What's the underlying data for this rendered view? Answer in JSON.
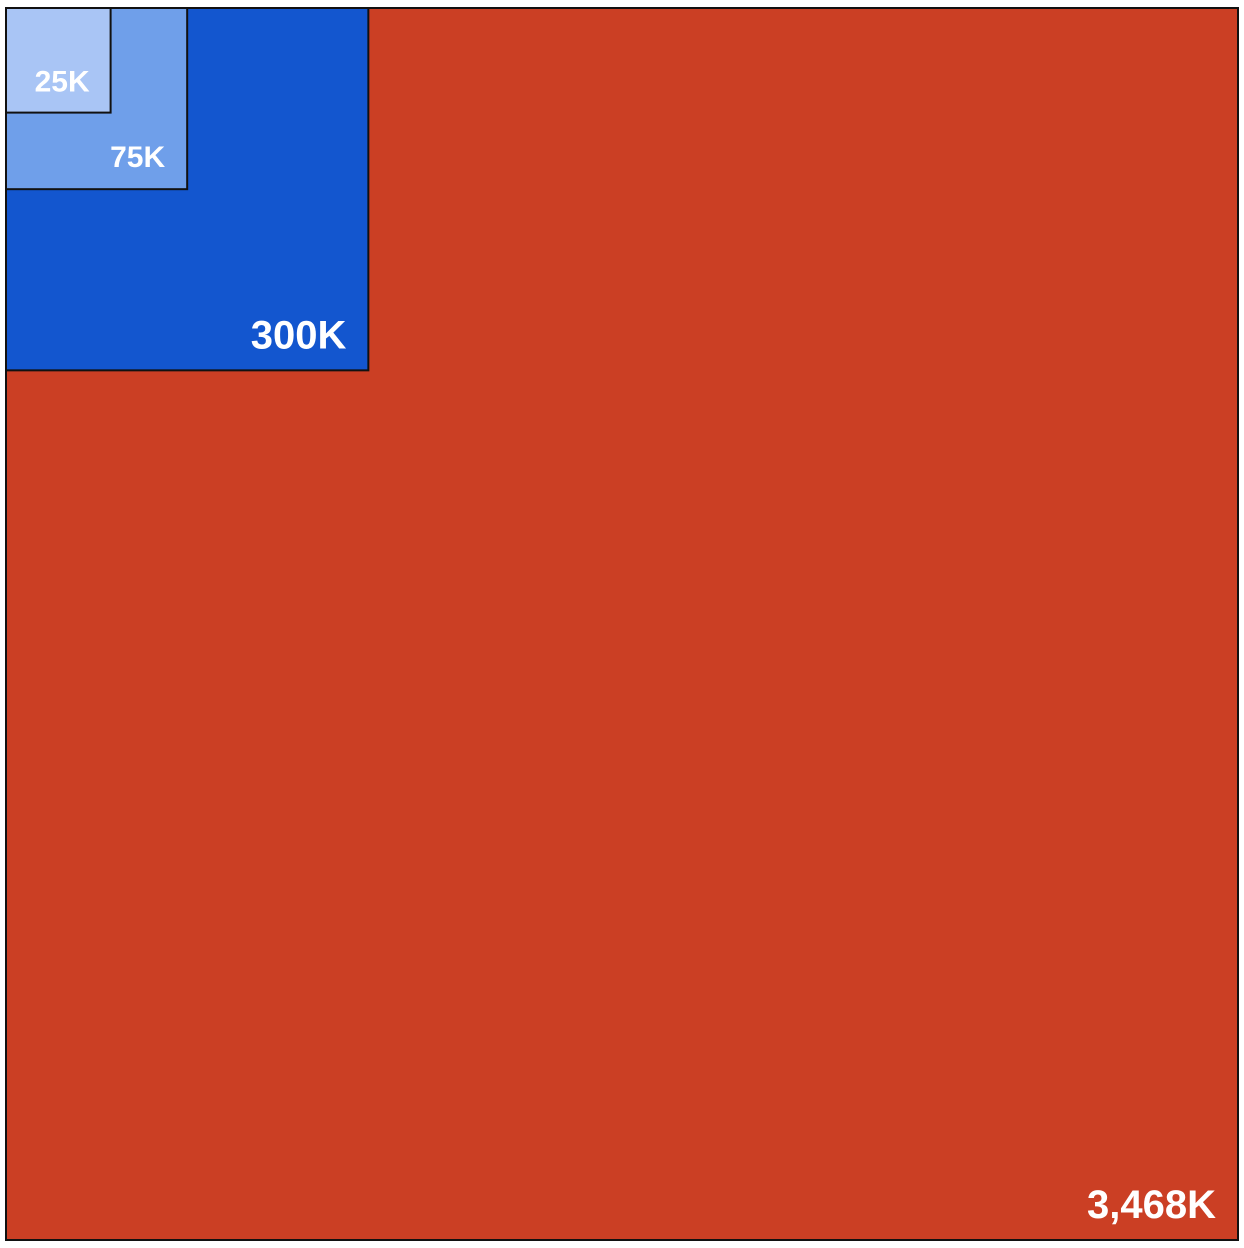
{
  "chart_data": {
    "type": "nested-squares",
    "title": "",
    "squares": [
      {
        "label": "3,468K",
        "value": 3468,
        "color": "#CB3F24"
      },
      {
        "label": "300K",
        "value": 300,
        "color": "#1356CF"
      },
      {
        "label": "75K",
        "value": 75,
        "color": "#6F9FEA"
      },
      {
        "label": "25K",
        "value": 25,
        "color": "#A9C5F5"
      }
    ],
    "unit": "K"
  }
}
